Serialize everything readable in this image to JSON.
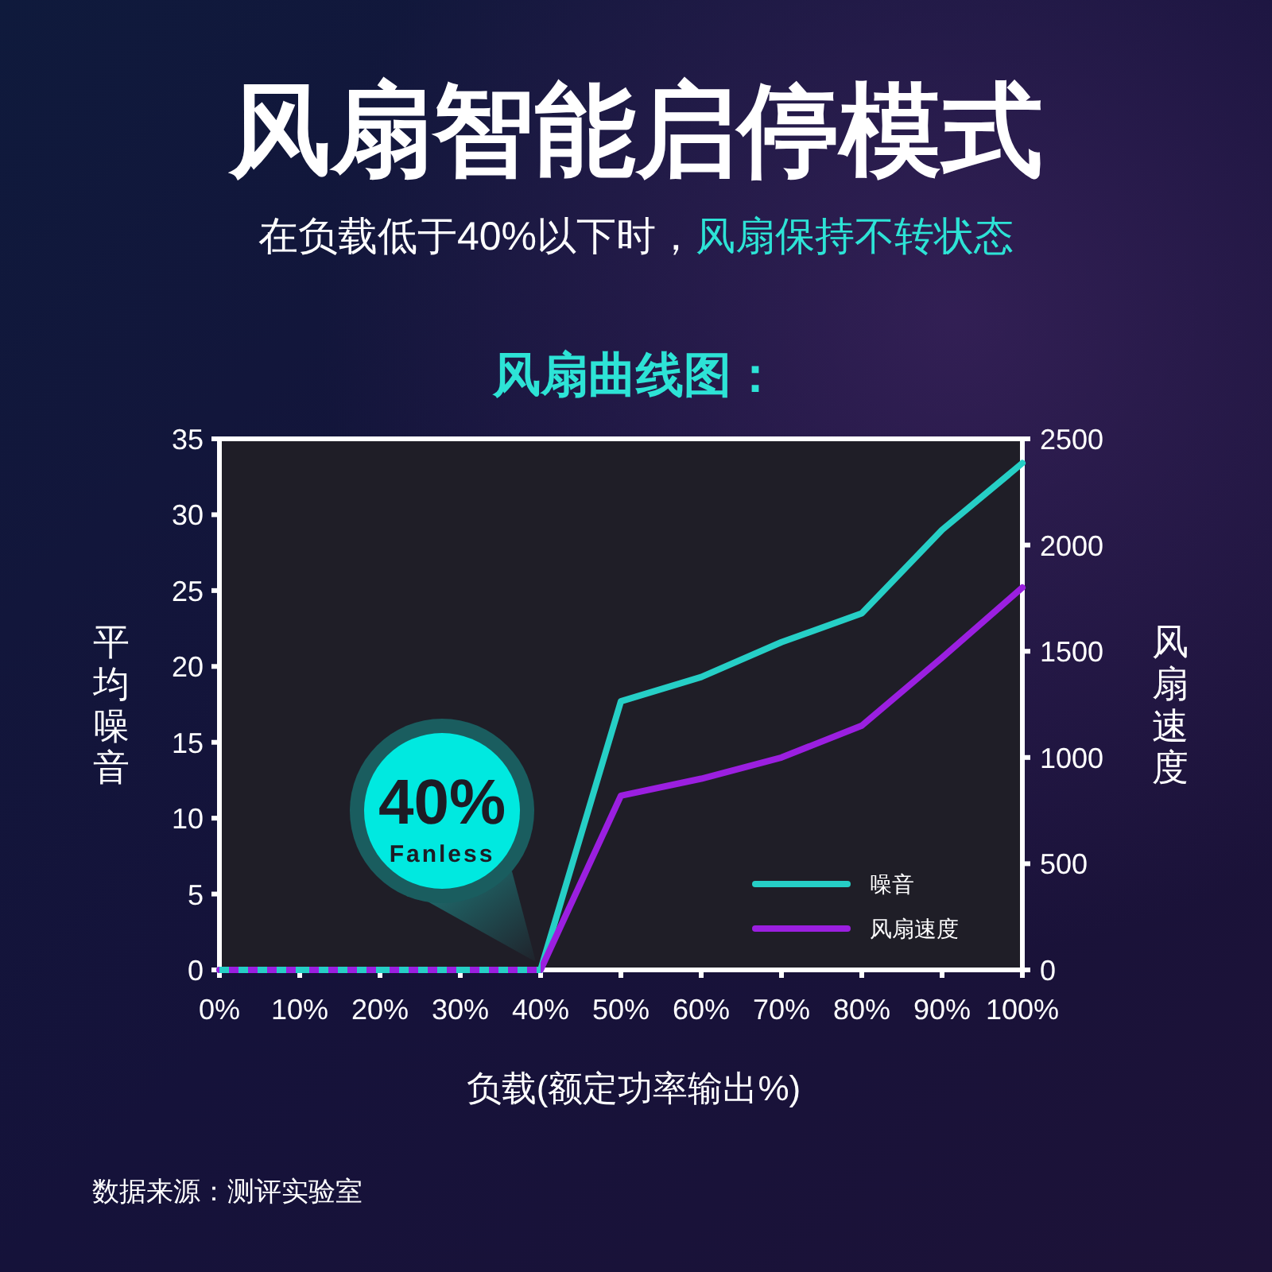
{
  "chart_data": {
    "type": "line",
    "title": "风扇智能启停模式",
    "subtitle": "在负载低于40%以下时，风扇保持不转状态",
    "xlabel": "负载(额定功率输出%)",
    "ylabel": "平均噪音",
    "y2label": "风扇速度",
    "x": [
      0,
      10,
      20,
      30,
      40,
      50,
      60,
      70,
      80,
      90,
      100
    ],
    "series": [
      {
        "name": "噪音",
        "color": "#26cfc6",
        "values": [
          0,
          0,
          0,
          0,
          0,
          17.7,
          19.3,
          21.6,
          23.5,
          29,
          33.4
        ]
      },
      {
        "name": "风扇速度",
        "color": "#9b1fe0",
        "axis": "y2",
        "values": [
          0,
          0,
          0,
          0,
          0,
          820,
          900,
          1000,
          1150,
          1470,
          1800
        ]
      }
    ],
    "xlim": [
      0,
      100
    ],
    "xticks": [
      {
        "value": 0,
        "label": "0%"
      },
      {
        "value": 10,
        "label": "10%"
      },
      {
        "value": 20,
        "label": "20%"
      },
      {
        "value": 30,
        "label": "30%"
      },
      {
        "value": 40,
        "label": "40%"
      },
      {
        "value": 50,
        "label": "50%"
      },
      {
        "value": 60,
        "label": "60%"
      },
      {
        "value": 70,
        "label": "70%"
      },
      {
        "value": 80,
        "label": "80%"
      },
      {
        "value": 90,
        "label": "90%"
      },
      {
        "value": 100,
        "label": "100%"
      }
    ],
    "ylim": [
      0,
      35
    ],
    "yticks": [
      0,
      5,
      10,
      15,
      20,
      25,
      30,
      35
    ],
    "y2lim": [
      0,
      2500
    ],
    "y2ticks": [
      0,
      500,
      1000,
      1500,
      2000,
      2500
    ],
    "legend": "bottom right",
    "grid": false,
    "marker": "none",
    "line_style": "solid",
    "annotations": [
      "风扇曲线图：",
      {
        "text": "40%",
        "x": 40,
        "y": 0
      },
      "Fanless",
      "数据来源：测评实验室"
    ]
  }
}
